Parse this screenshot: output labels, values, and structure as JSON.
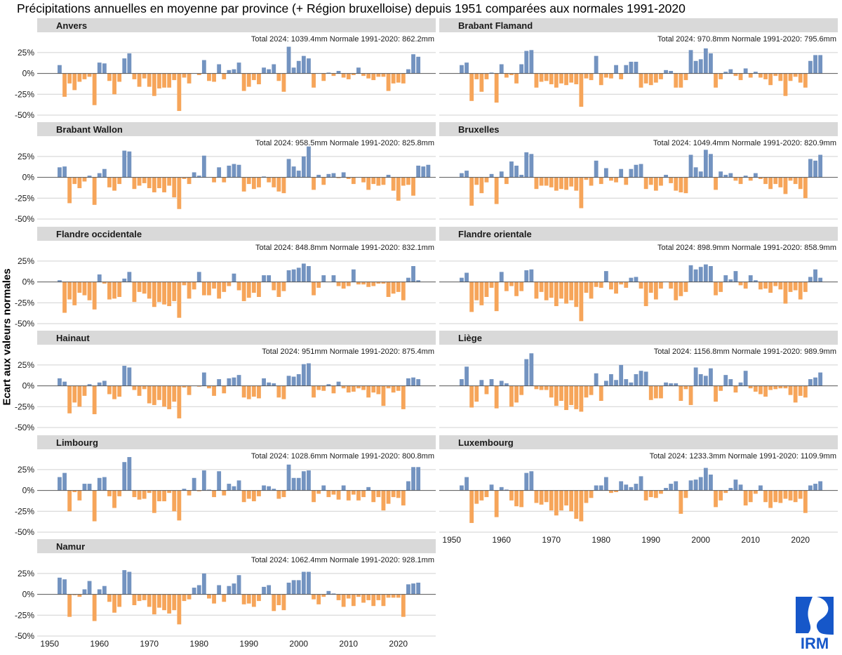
{
  "title": "Précipitations annuelles en moyenne par province (+ Région bruxelloise) depuis 1951 comparées aux normales 1991-2020",
  "chart_data": {
    "type": "bar",
    "ylabel": "Ecart aux valeurs normales",
    "ylim": [
      -50,
      35
    ],
    "yticks": [
      -50,
      -25,
      0,
      25
    ],
    "ytick_labels": [
      "-50%",
      "-25%",
      "0%",
      "25%"
    ],
    "xticks": [
      "1950",
      "1960",
      "1970",
      "1980",
      "1990",
      "2000",
      "2010",
      "2020"
    ],
    "x_start": 1951,
    "x_end": 2024,
    "colors": {
      "positive": "#7393c0",
      "negative": "#f6a55a",
      "strip": "#d9d9d9"
    },
    "panels": [
      {
        "name": "Anvers",
        "total_2024": "Total 2024: 1039.4mm",
        "normal": "Normale 1991-2020: 862.2mm",
        "values": [
          0,
          10,
          -28,
          -12,
          -20,
          -10,
          -7,
          -4,
          -38,
          13,
          12,
          -9,
          -25,
          -10,
          18,
          24,
          -7,
          -16,
          -6,
          -16,
          -27,
          -18,
          -17,
          -17,
          -8,
          -45,
          -5,
          -12,
          0,
          -2,
          16,
          -9,
          -10,
          11,
          -7,
          4,
          5,
          13,
          -21,
          -16,
          -8,
          -13,
          7,
          5,
          11,
          -9,
          -22,
          32,
          7,
          15,
          21,
          18,
          -17,
          0,
          -9,
          1,
          -3,
          3,
          -5,
          -7,
          -2,
          7,
          -3,
          -6,
          -8,
          -4,
          -4,
          -21,
          -12,
          -11,
          -12,
          5,
          23,
          20
        ]
      },
      {
        "name": "Brabant Flamand",
        "total_2024": "Total 2024: 970.8mm",
        "normal": "Normale 1991-2020: 795.6mm",
        "values": [
          0,
          10,
          13,
          -33,
          -7,
          -22,
          -7,
          1,
          -35,
          11,
          -5,
          -2,
          -12,
          11,
          27,
          28,
          -17,
          -10,
          -9,
          -13,
          -17,
          -12,
          -14,
          -11,
          -13,
          -40,
          -6,
          -8,
          21,
          -14,
          -5,
          -6,
          10,
          -7,
          10,
          14,
          14,
          -17,
          -12,
          -14,
          -11,
          -7,
          4,
          3,
          -17,
          -17,
          -8,
          28,
          15,
          17,
          30,
          24,
          -17,
          -7,
          2,
          5,
          -3,
          -8,
          6,
          -5,
          2,
          -5,
          -7,
          -14,
          -3,
          -9,
          -27,
          -9,
          -4,
          -11,
          -17,
          15,
          22,
          22
        ]
      },
      {
        "name": "Brabant Wallon",
        "total_2024": "Total 2024: 958.5mm",
        "normal": "Normale 1991-2020: 825.8mm",
        "values": [
          0,
          12,
          13,
          -31,
          -8,
          -13,
          -5,
          2,
          -33,
          5,
          10,
          -12,
          -16,
          -8,
          32,
          31,
          -14,
          -10,
          -7,
          -13,
          -18,
          -13,
          -18,
          -10,
          -24,
          -38,
          -2,
          -8,
          6,
          2,
          26,
          0,
          -6,
          12,
          -6,
          14,
          16,
          15,
          -17,
          -8,
          -14,
          -12,
          1,
          -6,
          -12,
          -17,
          -19,
          22,
          13,
          8,
          25,
          37,
          -15,
          3,
          -9,
          4,
          5,
          -1,
          6,
          -2,
          -8,
          0,
          -6,
          -15,
          -8,
          -10,
          -9,
          3,
          -16,
          -28,
          -10,
          -9,
          -22,
          14,
          13,
          15
        ]
      },
      {
        "name": "Bruxelles",
        "total_2024": "Total 2024: 1049.4mm",
        "normal": "Normale 1991-2020: 820.9mm",
        "values": [
          0,
          5,
          8,
          -34,
          -9,
          -19,
          -6,
          4,
          -32,
          7,
          -8,
          19,
          14,
          3,
          30,
          28,
          -14,
          -10,
          -10,
          -12,
          -16,
          -14,
          -15,
          -11,
          -16,
          -37,
          -3,
          -10,
          20,
          -8,
          11,
          -4,
          -6,
          10,
          -9,
          10,
          15,
          16,
          -14,
          -9,
          -16,
          -10,
          3,
          -7,
          -16,
          -18,
          -19,
          27,
          12,
          7,
          33,
          28,
          -15,
          7,
          3,
          5,
          -4,
          -8,
          2,
          -4,
          5,
          -2,
          -8,
          -14,
          -8,
          -12,
          -20,
          -4,
          -8,
          -14,
          -25,
          22,
          20,
          27
        ]
      },
      {
        "name": "Flandre occidentale",
        "total_2024": "Total 2024: 848.8mm",
        "normal": "Normale 1991-2020: 832.1mm",
        "values": [
          0,
          2,
          -37,
          -21,
          -28,
          -13,
          -16,
          -22,
          -33,
          9,
          -2,
          -21,
          -20,
          -18,
          4,
          12,
          -24,
          -12,
          -14,
          -20,
          -30,
          -24,
          -27,
          -29,
          -23,
          -43,
          -4,
          -20,
          -9,
          12,
          -16,
          -16,
          -8,
          -20,
          -12,
          -5,
          10,
          -10,
          -23,
          -19,
          -13,
          -18,
          8,
          8,
          -10,
          -18,
          -11,
          14,
          15,
          17,
          22,
          19,
          -16,
          -7,
          8,
          0,
          8,
          -5,
          -8,
          -5,
          15,
          -3,
          -3,
          -6,
          -5,
          -2,
          -2,
          -18,
          -14,
          -12,
          -22,
          5,
          19,
          2
        ]
      },
      {
        "name": "Flandre orientale",
        "total_2024": "Total 2024: 898.9mm",
        "normal": "Normale 1991-2020: 858.9mm",
        "values": [
          0,
          5,
          11,
          -36,
          -22,
          -28,
          -18,
          -7,
          -35,
          12,
          -11,
          -5,
          -17,
          -11,
          14,
          15,
          -20,
          -12,
          -22,
          -19,
          -29,
          -20,
          -26,
          -22,
          -30,
          -47,
          -13,
          -20,
          -6,
          -7,
          13,
          -9,
          -14,
          -3,
          -7,
          5,
          6,
          -8,
          -29,
          -13,
          -21,
          -8,
          0,
          -8,
          -22,
          -17,
          -12,
          20,
          15,
          18,
          21,
          19,
          -16,
          -12,
          8,
          3,
          13,
          -4,
          -8,
          8,
          2,
          -9,
          -8,
          -13,
          -5,
          -9,
          -26,
          -12,
          -10,
          -21,
          -12,
          6,
          15,
          5
        ]
      },
      {
        "name": "Hainaut",
        "total_2024": "Total 2024: 951mm",
        "normal": "Normale 1991-2020: 875.4mm",
        "values": [
          0,
          9,
          5,
          -33,
          -20,
          -25,
          -12,
          2,
          -34,
          4,
          6,
          -10,
          -16,
          -13,
          24,
          22,
          -5,
          -12,
          -4,
          -21,
          -23,
          -17,
          -25,
          -28,
          -19,
          -39,
          -2,
          -11,
          0,
          -1,
          16,
          -3,
          -12,
          8,
          -9,
          9,
          10,
          13,
          -14,
          -16,
          -13,
          -15,
          9,
          4,
          3,
          -14,
          -16,
          12,
          11,
          14,
          26,
          27,
          -14,
          -5,
          -6,
          2,
          -9,
          5,
          -3,
          -8,
          -7,
          -3,
          -5,
          -14,
          -8,
          -10,
          -24,
          -3,
          -8,
          -6,
          -28,
          9,
          10,
          8
        ]
      },
      {
        "name": "Liège",
        "total_2024": "Total 2024: 1156.8mm",
        "normal": "Normale 1991-2020: 989.9mm",
        "values": [
          0,
          8,
          23,
          -26,
          -19,
          7,
          -10,
          8,
          -27,
          6,
          3,
          -25,
          -20,
          -11,
          32,
          39,
          -4,
          -5,
          -5,
          -14,
          -24,
          -18,
          -29,
          -23,
          -28,
          -31,
          -14,
          -11,
          15,
          -18,
          6,
          14,
          7,
          25,
          8,
          4,
          14,
          18,
          17,
          -17,
          -15,
          -15,
          4,
          3,
          3,
          -18,
          -4,
          -23,
          22,
          14,
          12,
          21,
          -19,
          -6,
          13,
          8,
          -8,
          4,
          18,
          -3,
          -7,
          -10,
          -13,
          -5,
          -4,
          -3,
          -3,
          -11,
          -20,
          -12,
          -14,
          8,
          10,
          16
        ]
      },
      {
        "name": "Limbourg",
        "total_2024": "Total 2024: 1028.6mm",
        "normal": "Normale 1991-2020: 800.8mm",
        "values": [
          0,
          16,
          21,
          -25,
          -2,
          -12,
          8,
          8,
          -37,
          15,
          16,
          -7,
          -21,
          -7,
          34,
          40,
          -8,
          -11,
          -10,
          -3,
          -27,
          -13,
          -13,
          -3,
          -25,
          -36,
          2,
          -6,
          15,
          -1,
          24,
          1,
          -8,
          23,
          -6,
          8,
          5,
          12,
          -14,
          -10,
          -13,
          -7,
          6,
          5,
          2,
          -10,
          -8,
          31,
          15,
          15,
          23,
          24,
          -14,
          -4,
          6,
          -8,
          -5,
          -11,
          6,
          -12,
          -5,
          -12,
          -8,
          4,
          -14,
          -8,
          -24,
          -16,
          -8,
          -9,
          -18,
          11,
          28,
          28
        ]
      },
      {
        "name": "Luxembourg",
        "total_2024": "Total 2024: 1233.3mm",
        "normal": "Normale 1991-2020: 1109.9mm",
        "values": [
          0,
          6,
          16,
          -39,
          -16,
          -12,
          -8,
          7,
          -32,
          4,
          1,
          -12,
          -19,
          -20,
          21,
          23,
          -15,
          -17,
          -14,
          -24,
          -30,
          -24,
          -18,
          -25,
          -34,
          -37,
          -15,
          -9,
          6,
          6,
          16,
          -3,
          -2,
          11,
          7,
          4,
          8,
          17,
          -12,
          -8,
          -9,
          -4,
          3,
          8,
          11,
          -28,
          -9,
          12,
          13,
          16,
          27,
          19,
          -20,
          -12,
          -3,
          3,
          13,
          7,
          -18,
          -14,
          -4,
          6,
          -14,
          -21,
          -14,
          -15,
          -10,
          -12,
          -14,
          -10,
          -27,
          6,
          8,
          11
        ]
      },
      {
        "name": "Namur",
        "total_2024": "Total 2024: 1062.4mm",
        "normal": "Normale 1991-2020: 928.1mm",
        "values": [
          0,
          20,
          18,
          -27,
          -1,
          -3,
          6,
          16,
          -32,
          6,
          10,
          -9,
          -22,
          -15,
          29,
          27,
          -13,
          -8,
          -7,
          -15,
          -24,
          -16,
          -19,
          -23,
          -19,
          -36,
          -8,
          -6,
          8,
          11,
          25,
          -5,
          -11,
          11,
          -9,
          10,
          13,
          23,
          -12,
          -11,
          -15,
          -8,
          9,
          11,
          -20,
          -13,
          -19,
          14,
          17,
          17,
          27,
          27,
          -6,
          -12,
          -3,
          4,
          1,
          -7,
          -15,
          -5,
          -14,
          -3,
          -10,
          -7,
          -14,
          -7,
          -14,
          -4,
          -4,
          -4,
          -27,
          12,
          13,
          14
        ]
      }
    ]
  },
  "logo_text": "IRM"
}
